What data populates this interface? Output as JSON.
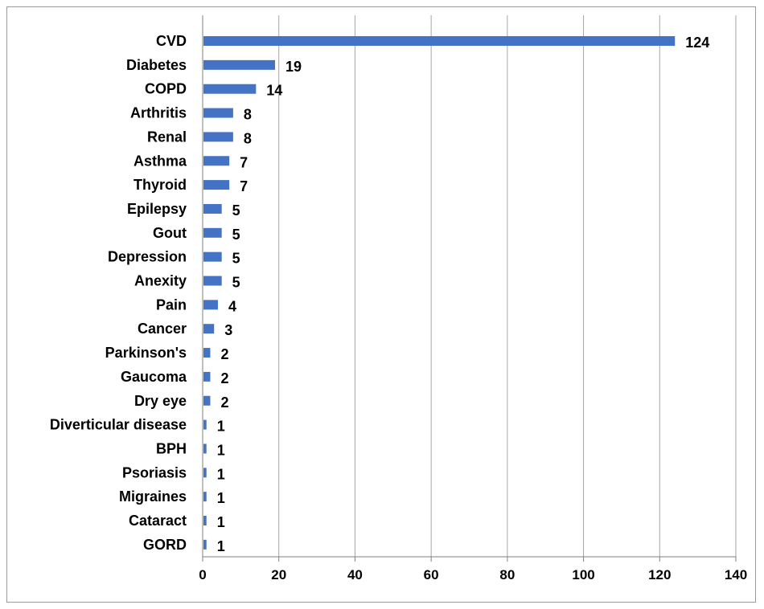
{
  "chart_data": {
    "type": "bar",
    "orientation": "horizontal",
    "categories": [
      "CVD",
      "Diabetes",
      "COPD",
      "Arthritis",
      "Renal",
      "Asthma",
      "Thyroid",
      "Epilepsy",
      "Gout",
      "Depression",
      "Anexity",
      "Pain",
      "Cancer",
      "Parkinson's",
      "Gaucoma",
      "Dry eye",
      "Diverticular disease",
      "BPH",
      "Psoriasis",
      "Migraines",
      "Cataract",
      "GORD"
    ],
    "values": [
      124,
      19,
      14,
      8,
      8,
      7,
      7,
      5,
      5,
      5,
      5,
      4,
      3,
      2,
      2,
      2,
      1,
      1,
      1,
      1,
      1,
      1
    ],
    "data_labels": [
      "124",
      "19",
      "14",
      "8",
      "8",
      "7",
      "7",
      "5",
      "5",
      "5",
      "5",
      "4",
      "3",
      "2",
      "2",
      "2",
      "1",
      "1",
      "1",
      "1",
      "1",
      "1"
    ],
    "title": "",
    "xlabel": "",
    "ylabel": "",
    "xlim": [
      0,
      140
    ],
    "xticks": [
      "0",
      "20",
      "40",
      "60",
      "80",
      "100",
      "120",
      "140"
    ],
    "grid": "vertical",
    "legend": "none",
    "colors": {
      "bar": "#4472C4",
      "grid": "#a6a6a6",
      "axis": "#7f7f7f"
    }
  }
}
